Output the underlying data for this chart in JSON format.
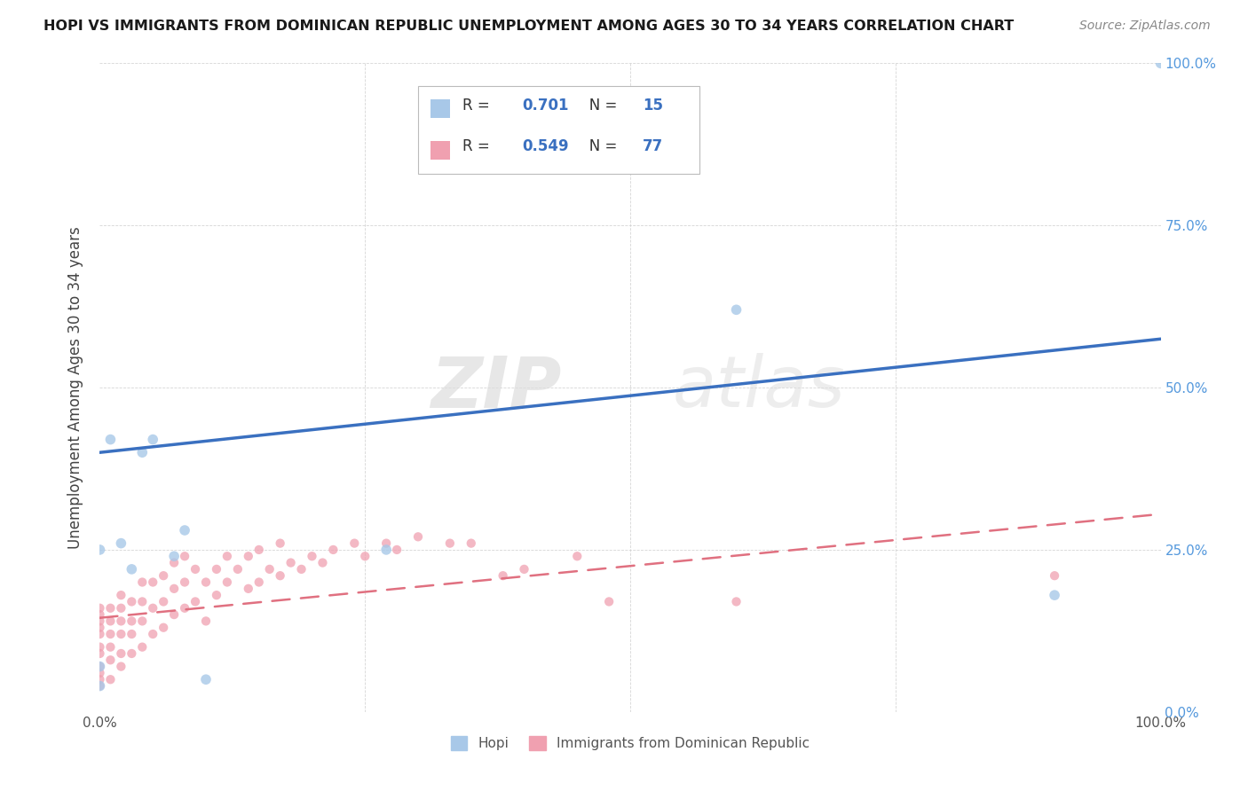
{
  "title": "HOPI VS IMMIGRANTS FROM DOMINICAN REPUBLIC UNEMPLOYMENT AMONG AGES 30 TO 34 YEARS CORRELATION CHART",
  "source": "Source: ZipAtlas.com",
  "ylabel": "Unemployment Among Ages 30 to 34 years",
  "legend_label_1": "Hopi",
  "legend_label_2": "Immigrants from Dominican Republic",
  "r1": 0.701,
  "n1": 15,
  "r2": 0.549,
  "n2": 77,
  "color_blue": "#A8C8E8",
  "color_pink": "#F0A0B0",
  "color_blue_line": "#3A70C0",
  "color_pink_line": "#E07080",
  "watermark_zip": "ZIP",
  "watermark_atlas": "atlas",
  "blue_line_x0": 0.0,
  "blue_line_y0": 0.4,
  "blue_line_x1": 1.0,
  "blue_line_y1": 0.575,
  "pink_line_x0": 0.0,
  "pink_line_y0": 0.145,
  "pink_line_x1": 1.0,
  "pink_line_y1": 0.305,
  "hopi_x": [
    0.0,
    0.0,
    0.0,
    0.01,
    0.02,
    0.03,
    0.04,
    0.05,
    0.07,
    0.08,
    0.1,
    0.27,
    0.6,
    0.9,
    1.0
  ],
  "hopi_y": [
    0.04,
    0.07,
    0.25,
    0.42,
    0.26,
    0.22,
    0.4,
    0.42,
    0.24,
    0.28,
    0.05,
    0.25,
    0.62,
    0.18,
    1.0
  ],
  "dr_x": [
    0.0,
    0.0,
    0.0,
    0.0,
    0.0,
    0.0,
    0.0,
    0.0,
    0.0,
    0.0,
    0.0,
    0.01,
    0.01,
    0.01,
    0.01,
    0.01,
    0.01,
    0.02,
    0.02,
    0.02,
    0.02,
    0.02,
    0.02,
    0.03,
    0.03,
    0.03,
    0.03,
    0.04,
    0.04,
    0.04,
    0.04,
    0.05,
    0.05,
    0.05,
    0.06,
    0.06,
    0.06,
    0.07,
    0.07,
    0.07,
    0.08,
    0.08,
    0.08,
    0.09,
    0.09,
    0.1,
    0.1,
    0.11,
    0.11,
    0.12,
    0.12,
    0.13,
    0.14,
    0.14,
    0.15,
    0.15,
    0.16,
    0.17,
    0.17,
    0.18,
    0.19,
    0.2,
    0.21,
    0.22,
    0.24,
    0.25,
    0.27,
    0.28,
    0.3,
    0.33,
    0.35,
    0.38,
    0.4,
    0.45,
    0.48,
    0.6,
    0.9
  ],
  "dr_y": [
    0.04,
    0.05,
    0.06,
    0.07,
    0.09,
    0.1,
    0.12,
    0.13,
    0.14,
    0.15,
    0.16,
    0.05,
    0.08,
    0.1,
    0.12,
    0.14,
    0.16,
    0.07,
    0.09,
    0.12,
    0.14,
    0.16,
    0.18,
    0.09,
    0.12,
    0.14,
    0.17,
    0.1,
    0.14,
    0.17,
    0.2,
    0.12,
    0.16,
    0.2,
    0.13,
    0.17,
    0.21,
    0.15,
    0.19,
    0.23,
    0.16,
    0.2,
    0.24,
    0.17,
    0.22,
    0.14,
    0.2,
    0.18,
    0.22,
    0.2,
    0.24,
    0.22,
    0.19,
    0.24,
    0.2,
    0.25,
    0.22,
    0.21,
    0.26,
    0.23,
    0.22,
    0.24,
    0.23,
    0.25,
    0.26,
    0.24,
    0.26,
    0.25,
    0.27,
    0.26,
    0.26,
    0.21,
    0.22,
    0.24,
    0.17,
    0.17,
    0.21
  ],
  "xlim": [
    0.0,
    1.0
  ],
  "ylim": [
    0.0,
    1.0
  ],
  "xtick_vals": [
    0.0,
    1.0
  ],
  "xtick_labels": [
    "0.0%",
    "100.0%"
  ],
  "ytick_vals": [
    0.0,
    0.25,
    0.5,
    0.75,
    1.0
  ],
  "ytick_labels": [
    "0.0%",
    "25.0%",
    "50.0%",
    "75.0%",
    "100.0%"
  ],
  "grid_xtick_vals": [
    0.0,
    0.25,
    0.5,
    0.75,
    1.0
  ]
}
